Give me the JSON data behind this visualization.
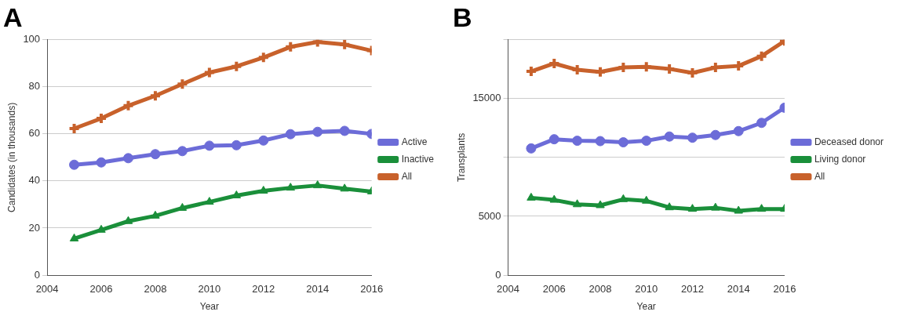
{
  "chart_data": [
    {
      "type": "line",
      "title": "A",
      "xlabel": "Year",
      "ylabel": "Candidates (in thousands)",
      "x": [
        2005,
        2006,
        2007,
        2008,
        2009,
        2010,
        2011,
        2012,
        2013,
        2014,
        2015,
        2016
      ],
      "xlim": [
        2004,
        2016
      ],
      "xticks": [
        2004,
        2006,
        2008,
        2010,
        2012,
        2014,
        2016
      ],
      "ylim": [
        0,
        100
      ],
      "yticks": [
        0,
        20,
        40,
        60,
        80,
        100
      ],
      "grid": "y",
      "legend": "right",
      "series": [
        {
          "name": "Active",
          "color": "#6c6cd8",
          "marker": "circle",
          "values": [
            46.9,
            47.9,
            49.7,
            51.4,
            52.7,
            55,
            55.2,
            57.2,
            59.9,
            60.9,
            61.3,
            60
          ]
        },
        {
          "name": "Inactive",
          "color": "#1a8f3a",
          "marker": "triangle",
          "values": [
            15.5,
            19.2,
            22.9,
            25.2,
            28.5,
            31.1,
            33.8,
            35.8,
            37.1,
            38.1,
            36.7,
            35.5
          ]
        },
        {
          "name": "All",
          "color": "#c8612b",
          "marker": "cross",
          "values": [
            62.3,
            66.6,
            72,
            76.2,
            81.2,
            86.1,
            88.7,
            92.5,
            97,
            99.1,
            98,
            95.4
          ]
        }
      ]
    },
    {
      "type": "line",
      "title": "B",
      "xlabel": "Year",
      "ylabel": "Transplants",
      "x": [
        2005,
        2006,
        2007,
        2008,
        2009,
        2010,
        2011,
        2012,
        2013,
        2014,
        2015,
        2016
      ],
      "xlim": [
        2004,
        2016
      ],
      "xticks": [
        2004,
        2006,
        2008,
        2010,
        2012,
        2014,
        2016
      ],
      "ylim": [
        0,
        20000
      ],
      "yticks": [
        0,
        5000,
        {
          "value": 10000,
          "label": null
        },
        15000,
        {
          "value": 20000,
          "label": null
        }
      ],
      "grid": "y",
      "legend": "right",
      "series": [
        {
          "name": "Deceased donor",
          "color": "#6c6cd8",
          "marker": "circle",
          "values": [
            10770,
            11550,
            11420,
            11390,
            11290,
            11420,
            11780,
            11680,
            11910,
            12240,
            12940,
            14230
          ]
        },
        {
          "name": "Living donor",
          "color": "#1a8f3a",
          "marker": "triangle",
          "values": [
            6570,
            6390,
            6010,
            5930,
            6440,
            6310,
            5750,
            5620,
            5720,
            5460,
            5620,
            5620
          ]
        },
        {
          "name": "All",
          "color": "#c8612b",
          "marker": "cross",
          "values": [
            17320,
            17990,
            17450,
            17270,
            17650,
            17710,
            17530,
            17190,
            17650,
            17780,
            18610,
            19900
          ]
        }
      ]
    }
  ]
}
